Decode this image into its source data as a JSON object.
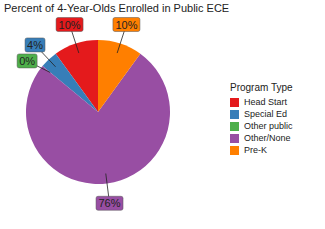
{
  "chart_data": {
    "type": "pie",
    "title": "Percent of 4-Year-Olds Enrolled in Public ECE",
    "legend_title": "Program Type",
    "categories": [
      "Head Start",
      "Special Ed",
      "Other public",
      "Other/None",
      "Pre-K"
    ],
    "values": [
      10,
      4,
      0,
      76,
      10
    ],
    "value_labels": [
      "10%",
      "4%",
      "0%",
      "76%",
      "10%"
    ],
    "colors": [
      "#e41a1c",
      "#377eb8",
      "#4daf4a",
      "#984ea3",
      "#ff7f00"
    ],
    "data_labels": true,
    "legend": "right"
  }
}
